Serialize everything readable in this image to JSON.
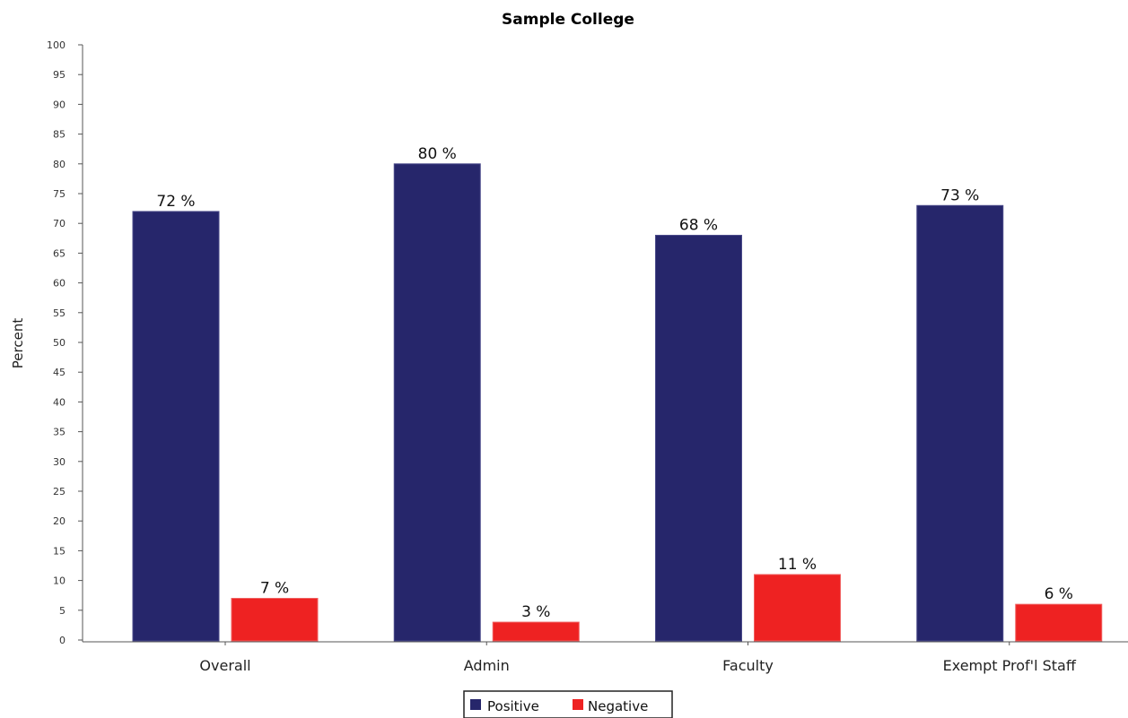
{
  "chart_data": {
    "type": "bar",
    "title": "Sample College",
    "xlabel": "",
    "ylabel": "Percent",
    "ylim": [
      0,
      100
    ],
    "ytick_step": 5,
    "categories": [
      "Overall",
      "Admin",
      "Faculty",
      "Exempt Prof'l Staff"
    ],
    "series": [
      {
        "name": "Positive",
        "color": "#26266b",
        "values": [
          72,
          80,
          68,
          73
        ],
        "labels": [
          "72 %",
          "80 %",
          "68 %",
          "73 %"
        ]
      },
      {
        "name": "Negative",
        "color": "#ee2222",
        "values": [
          7,
          3,
          11,
          6
        ],
        "labels": [
          "7 %",
          "3 %",
          "11 %",
          "6 %"
        ]
      }
    ],
    "grid": false,
    "legend": "bottom-center"
  }
}
